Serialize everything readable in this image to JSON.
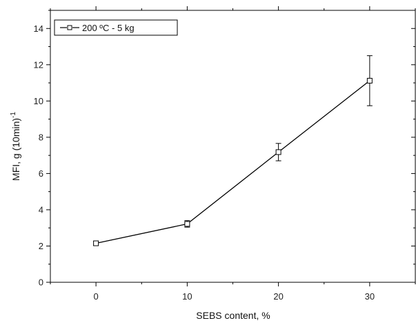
{
  "chart_data": {
    "type": "line",
    "xlabel": "SEBS content, %",
    "ylabel_main": "MFI, g (10min)",
    "ylabel_sup": "-1",
    "xlim": [
      -5,
      35
    ],
    "ylim": [
      0,
      15
    ],
    "x_major_ticks": [
      0,
      10,
      20,
      30
    ],
    "x_tick_labels": [
      "0",
      "10",
      "20",
      "30"
    ],
    "y_major_ticks": [
      0,
      2,
      4,
      6,
      8,
      10,
      12,
      14
    ],
    "y_tick_labels": [
      "0",
      "2",
      "4",
      "6",
      "8",
      "10",
      "12",
      "14"
    ],
    "grid": false,
    "legend_position": "top-left",
    "series": [
      {
        "name": "200 ºC - 5 kg",
        "marker": "open-square",
        "color": "#000000",
        "x": [
          0,
          10,
          20,
          30
        ],
        "y": [
          2.15,
          3.22,
          7.18,
          11.12
        ],
        "error": [
          0.1,
          0.18,
          0.48,
          1.38
        ]
      }
    ]
  }
}
